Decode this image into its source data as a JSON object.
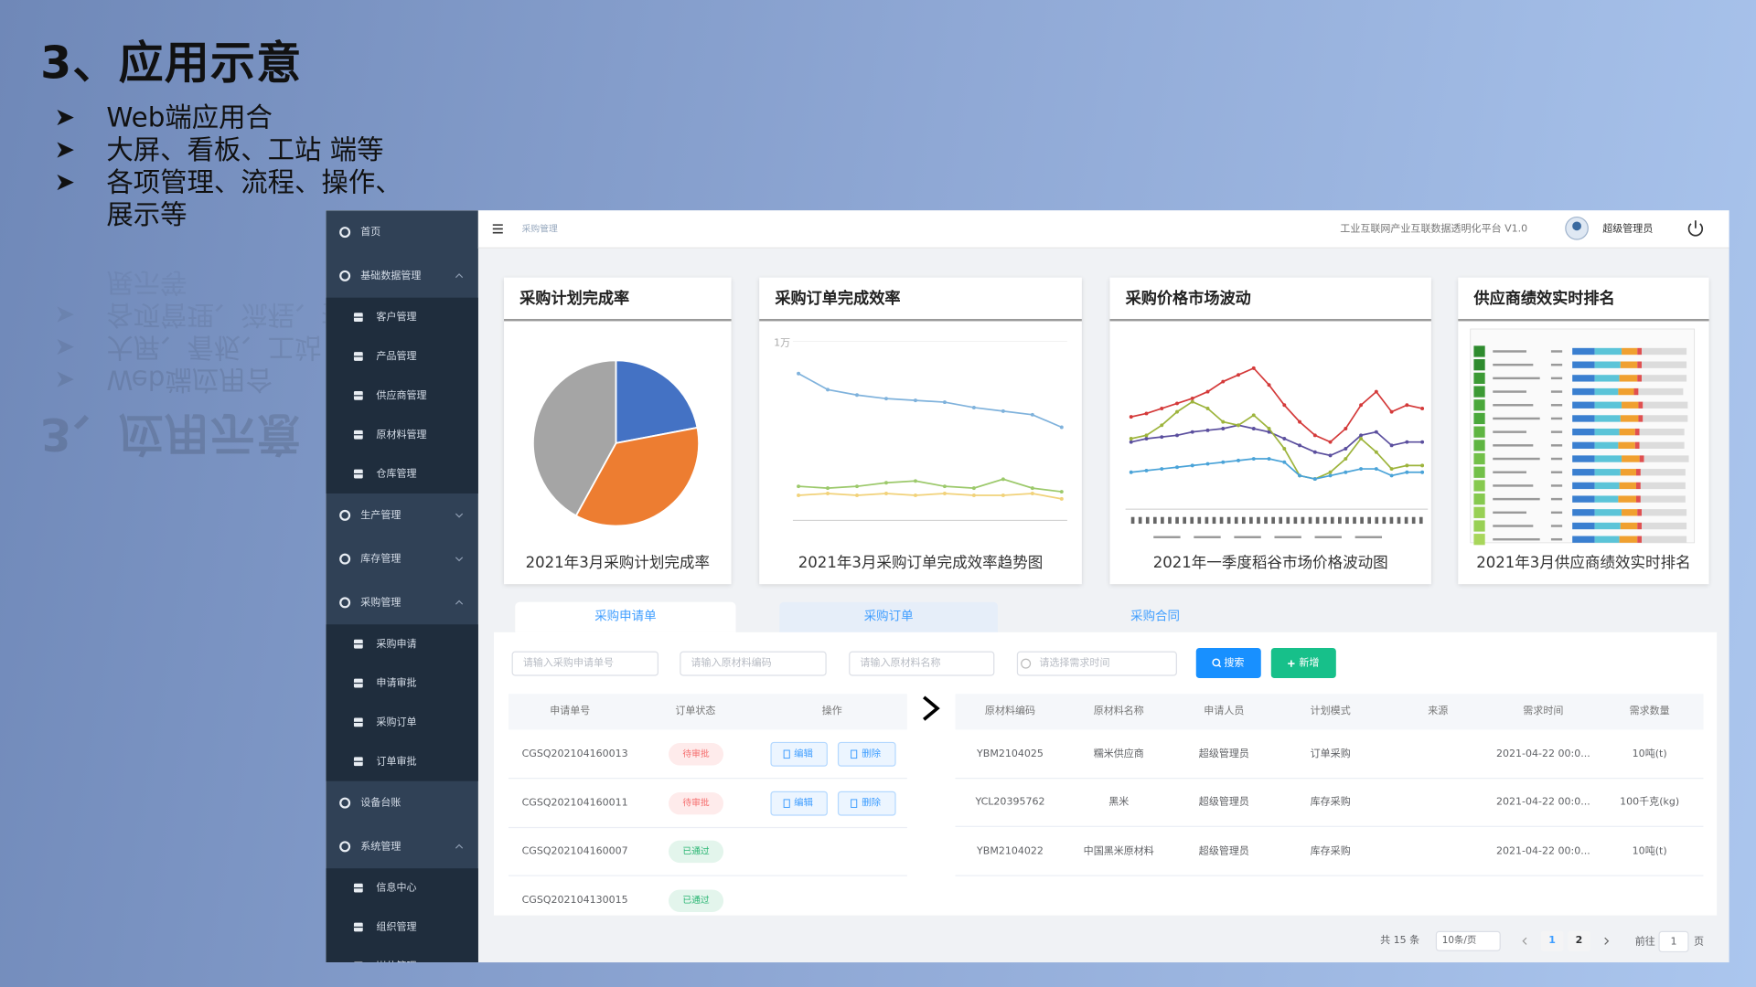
{
  "slide": {
    "title": "3、应用示意",
    "bullets": [
      "Web端应用合",
      "大屏、看板、工站 端等",
      "各项管理、流程、操作、展示等"
    ]
  },
  "sidebar": [
    {
      "label": "首页"
    },
    {
      "label": "基础数据管理",
      "children": [
        "客户管理",
        "产品管理",
        "供应商管理",
        "原材料管理",
        "仓库管理"
      ]
    },
    {
      "label": "生产管理",
      "expanded": false
    },
    {
      "label": "库存管理",
      "expanded": false
    },
    {
      "label": "采购管理",
      "children": [
        "采购申请",
        "申请审批",
        "采购订单",
        "订单审批"
      ]
    },
    {
      "label": "设备台账"
    },
    {
      "label": "系统管理",
      "children": [
        "信息中心",
        "组织管理",
        "岗位管理"
      ]
    }
  ],
  "header": {
    "breadcrumb": "采购管理",
    "platform": "工业互联网产业互联数据透明化平台 V1.0",
    "user": "超级管理员"
  },
  "cards": [
    {
      "title": "采购计划完成率",
      "caption": "2021年3月采购计划完成率",
      "chart_data": {
        "type": "pie",
        "values": [
          22,
          36,
          42
        ],
        "colors": [
          "#4472c4",
          "#ed7d31",
          "#a5a5a5"
        ]
      }
    },
    {
      "title": "采购订单完成效率",
      "caption": "2021年3月采购订单完成效率趋势图",
      "chart_data": {
        "type": "line",
        "categories": [
          null,
          null,
          null,
          null,
          null,
          null,
          null,
          null,
          null,
          null
        ],
        "ylim": [
          0,
          10000
        ],
        "yticks": [
          {
            "value": 10000,
            "label": "1万"
          }
        ],
        "series": [
          {
            "color": "#7fb2dc",
            "values": [
              8200,
              7300,
              7000,
              6800,
              6700,
              6600,
              6300,
              6100,
              5900,
              5200
            ]
          },
          {
            "color": "#9cc96b",
            "values": [
              1900,
              1800,
              1900,
              2100,
              2200,
              1900,
              1800,
              2300,
              1800,
              1600
            ]
          },
          {
            "color": "#f1d27a",
            "values": [
              1400,
              1500,
              1400,
              1500,
              1400,
              1500,
              1400,
              1400,
              1500,
              1200
            ]
          }
        ]
      }
    },
    {
      "title": "采购价格市场波动",
      "caption": "2021年一季度稻谷市场价格波动图",
      "chart_data": {
        "type": "line",
        "categories": [
          null,
          null,
          null,
          null,
          null,
          null,
          null,
          null,
          null,
          null,
          null,
          null,
          null,
          null,
          null,
          null,
          null,
          null,
          null,
          null
        ],
        "ylim": [
          0,
          100
        ],
        "series": [
          {
            "color": "#d43a3a",
            "values": [
              55,
              57,
              60,
              63,
              66,
              70,
              76,
              80,
              84,
              74,
              62,
              52,
              44,
              40,
              48,
              62,
              70,
              58,
              62,
              60
            ]
          },
          {
            "color": "#5b4f9e",
            "values": [
              40,
              42,
              43,
              44,
              46,
              47,
              48,
              50,
              48,
              46,
              42,
              38,
              34,
              32,
              36,
              44,
              46,
              38,
              40,
              40
            ]
          },
          {
            "color": "#9db43c",
            "values": [
              42,
              44,
              50,
              58,
              64,
              60,
              52,
              50,
              56,
              48,
              36,
              20,
              18,
              22,
              30,
              42,
              34,
              24,
              26,
              26
            ]
          },
          {
            "color": "#4aa3d8",
            "values": [
              22,
              23,
              24,
              25,
              26,
              27,
              28,
              29,
              30,
              30,
              28,
              20,
              18,
              20,
              22,
              24,
              24,
              20,
              22,
              22
            ]
          }
        ]
      }
    },
    {
      "title": "供应商绩效实时排名",
      "caption": "2021年3月供应商绩效实时排名"
    }
  ],
  "tabs": [
    "采购申请单",
    "采购订单",
    "采购合同"
  ],
  "filters": [
    "请输入采购申请单号",
    "请输入原材料编码",
    "请输入原材料名称",
    "请选择需求时间"
  ],
  "buttons": [
    {
      "label": "搜索",
      "color": "#1890ff"
    },
    {
      "label": "新增",
      "color": "#17c08a"
    }
  ],
  "left_table": {
    "columns": [
      "申请单号",
      "订单状态",
      "操作"
    ],
    "rows": [
      {
        "id": "CGSQ202104160013",
        "status": "待审批",
        "status_color": "#f56c6c",
        "actions": [
          "编辑",
          "删除"
        ]
      },
      {
        "id": "CGSQ202104160011",
        "status": "待审批",
        "status_color": "#f56c6c",
        "actions": [
          "编辑",
          "删除"
        ]
      },
      {
        "id": "CGSQ202104160007",
        "status": "已通过",
        "status_color": "#2bb673"
      },
      {
        "id": "CGSQ202104130015",
        "status": "已通过",
        "status_color": "#2bb673"
      }
    ]
  },
  "right_table": {
    "columns": [
      "原材料编码",
      "原材料名称",
      "申请人员",
      "计划模式",
      "来源",
      "需求时间",
      "需求数量"
    ],
    "rows": [
      [
        "YBM2104025",
        "糯米供应商",
        "超级管理员",
        "订单采购",
        null,
        "2021-04-22 00:0...",
        "10吨(t)"
      ],
      [
        "YCL20395762",
        "黑米",
        "超级管理员",
        "库存采购",
        null,
        "2021-04-22 00:0...",
        "100千克(kg)"
      ],
      [
        "YBM2104022",
        "中国黑米原材料",
        "超级管理员",
        "库存采购",
        null,
        "2021-04-22 00:0...",
        "10吨(t)"
      ]
    ]
  },
  "pagination": {
    "total": "共 15 条",
    "page_size": "10条/页",
    "pages": [
      1,
      2
    ],
    "current_page": 1,
    "goto": "前往",
    "goto_value": 1,
    "unit": "页"
  }
}
